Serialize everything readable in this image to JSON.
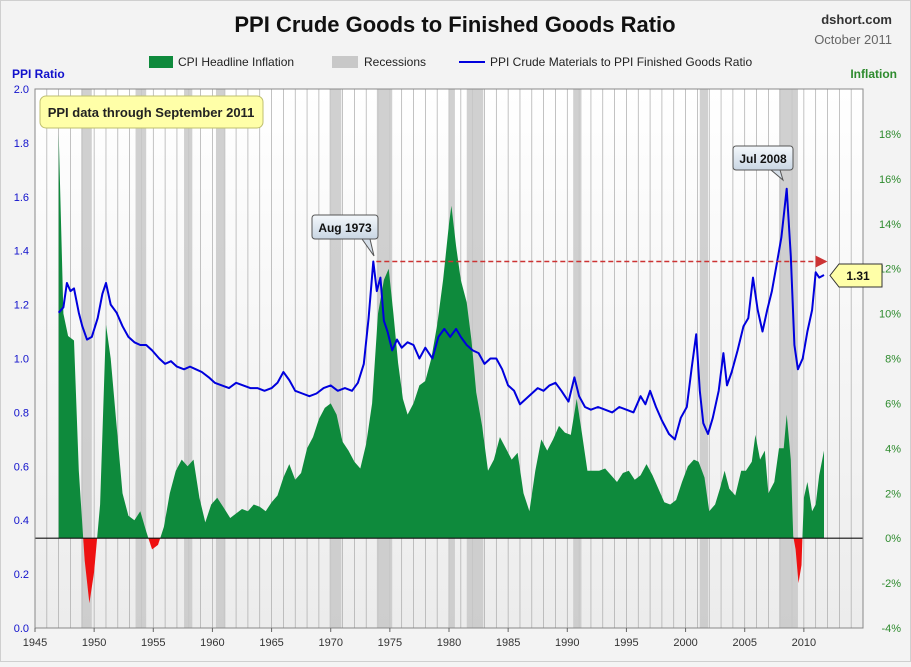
{
  "header": {
    "title": "PPI Crude Goods to Finished Goods Ratio",
    "site": "dshort.com",
    "date": "October 2011"
  },
  "legend": {
    "cpi": "CPI Headline Inflation",
    "recessions": "Recessions",
    "ppi": "PPI Crude Materials to PPI Finished Goods Ratio"
  },
  "axis": {
    "left_title": "PPI Ratio",
    "right_title": "Inflation"
  },
  "colors": {
    "ratio_line": "#0000dd",
    "cpi_positive": "#0e8a3c",
    "cpi_negative": "#ee1111",
    "recession": "#c8c8c8",
    "left_axis_title": "#1111cc",
    "right_axis_title": "#2e8b2e",
    "note_box": "#ffffa8",
    "reference_arrow": "#cc3333"
  },
  "annotations": {
    "note": "PPI data through September 2011",
    "peak_1973": "Aug 1973",
    "peak_2008": "Jul 2008",
    "latest_value": "1.31"
  },
  "chart_data": {
    "type": "line",
    "title": "PPI Crude Goods to Finished Goods Ratio",
    "x_ticks": [
      1945,
      1950,
      1955,
      1960,
      1965,
      1970,
      1975,
      1980,
      1985,
      1990,
      1995,
      2000,
      2005,
      2010
    ],
    "xlim": [
      1945,
      2015
    ],
    "y_left_ticks": [
      "0.0",
      "0.2",
      "0.4",
      "0.6",
      "0.8",
      "1.0",
      "1.2",
      "1.4",
      "1.6",
      "1.8",
      "2.0"
    ],
    "ylim_left": [
      0,
      2
    ],
    "y_right_ticks": [
      "-4%",
      "-2%",
      "0%",
      "2%",
      "4%",
      "6%",
      "8%",
      "10%",
      "12%",
      "14%",
      "16%",
      "18%"
    ],
    "ylim_right": [
      -4,
      20
    ],
    "grid": "vertical lines each year",
    "legend_position": "top",
    "recessions": [
      [
        1948.9,
        1949.8
      ],
      [
        1953.5,
        1954.4
      ],
      [
        1957.6,
        1958.3
      ],
      [
        1960.3,
        1961.1
      ],
      [
        1969.9,
        1970.9
      ],
      [
        1973.9,
        1975.2
      ],
      [
        1980.0,
        1980.5
      ],
      [
        1981.5,
        1982.9
      ],
      [
        1990.5,
        1991.2
      ],
      [
        2001.2,
        2001.9
      ],
      [
        2007.9,
        2009.5
      ]
    ],
    "series": [
      {
        "name": "PPI Crude Materials to PPI Finished Goods Ratio",
        "axis": "left",
        "points": [
          [
            1947.0,
            1.17
          ],
          [
            1947.4,
            1.19
          ],
          [
            1947.7,
            1.28
          ],
          [
            1948.0,
            1.25
          ],
          [
            1948.3,
            1.26
          ],
          [
            1948.7,
            1.17
          ],
          [
            1949.0,
            1.12
          ],
          [
            1949.4,
            1.07
          ],
          [
            1949.8,
            1.08
          ],
          [
            1950.3,
            1.15
          ],
          [
            1950.7,
            1.24
          ],
          [
            1951.0,
            1.28
          ],
          [
            1951.4,
            1.2
          ],
          [
            1951.9,
            1.17
          ],
          [
            1952.4,
            1.12
          ],
          [
            1952.9,
            1.08
          ],
          [
            1953.4,
            1.06
          ],
          [
            1953.9,
            1.05
          ],
          [
            1954.4,
            1.05
          ],
          [
            1954.9,
            1.03
          ],
          [
            1955.5,
            1.0
          ],
          [
            1956.0,
            0.98
          ],
          [
            1956.5,
            0.99
          ],
          [
            1957.0,
            0.97
          ],
          [
            1957.6,
            0.96
          ],
          [
            1958.1,
            0.97
          ],
          [
            1958.6,
            0.96
          ],
          [
            1959.1,
            0.95
          ],
          [
            1959.7,
            0.93
          ],
          [
            1960.2,
            0.91
          ],
          [
            1960.8,
            0.9
          ],
          [
            1961.4,
            0.89
          ],
          [
            1962.0,
            0.91
          ],
          [
            1962.6,
            0.9
          ],
          [
            1963.2,
            0.89
          ],
          [
            1963.8,
            0.89
          ],
          [
            1964.4,
            0.88
          ],
          [
            1965.0,
            0.89
          ],
          [
            1965.5,
            0.91
          ],
          [
            1966.0,
            0.95
          ],
          [
            1966.5,
            0.92
          ],
          [
            1967.0,
            0.88
          ],
          [
            1967.6,
            0.87
          ],
          [
            1968.2,
            0.86
          ],
          [
            1968.8,
            0.87
          ],
          [
            1969.4,
            0.89
          ],
          [
            1970.0,
            0.9
          ],
          [
            1970.6,
            0.88
          ],
          [
            1971.2,
            0.89
          ],
          [
            1971.8,
            0.88
          ],
          [
            1972.3,
            0.91
          ],
          [
            1972.8,
            0.98
          ],
          [
            1973.2,
            1.15
          ],
          [
            1973.6,
            1.36
          ],
          [
            1973.9,
            1.25
          ],
          [
            1974.2,
            1.3
          ],
          [
            1974.5,
            1.14
          ],
          [
            1974.8,
            1.1
          ],
          [
            1975.2,
            1.03
          ],
          [
            1975.6,
            1.07
          ],
          [
            1976.0,
            1.04
          ],
          [
            1976.5,
            1.06
          ],
          [
            1977.0,
            1.05
          ],
          [
            1977.5,
            1.0
          ],
          [
            1978.0,
            1.04
          ],
          [
            1978.6,
            1.0
          ],
          [
            1979.1,
            1.08
          ],
          [
            1979.6,
            1.11
          ],
          [
            1980.1,
            1.08
          ],
          [
            1980.6,
            1.11
          ],
          [
            1981.0,
            1.08
          ],
          [
            1981.5,
            1.05
          ],
          [
            1982.0,
            1.03
          ],
          [
            1982.5,
            1.02
          ],
          [
            1983.0,
            0.98
          ],
          [
            1983.5,
            1.0
          ],
          [
            1984.0,
            1.0
          ],
          [
            1984.5,
            0.96
          ],
          [
            1985.0,
            0.9
          ],
          [
            1985.5,
            0.88
          ],
          [
            1986.0,
            0.83
          ],
          [
            1986.5,
            0.85
          ],
          [
            1987.0,
            0.87
          ],
          [
            1987.5,
            0.89
          ],
          [
            1988.0,
            0.88
          ],
          [
            1988.5,
            0.9
          ],
          [
            1989.0,
            0.91
          ],
          [
            1989.5,
            0.88
          ],
          [
            1990.1,
            0.84
          ],
          [
            1990.6,
            0.93
          ],
          [
            1991.0,
            0.86
          ],
          [
            1991.5,
            0.82
          ],
          [
            1992.0,
            0.81
          ],
          [
            1992.6,
            0.82
          ],
          [
            1993.2,
            0.81
          ],
          [
            1993.8,
            0.8
          ],
          [
            1994.4,
            0.82
          ],
          [
            1995.0,
            0.81
          ],
          [
            1995.6,
            0.8
          ],
          [
            1996.2,
            0.86
          ],
          [
            1996.6,
            0.83
          ],
          [
            1997.0,
            0.88
          ],
          [
            1997.5,
            0.82
          ],
          [
            1998.0,
            0.77
          ],
          [
            1998.6,
            0.72
          ],
          [
            1999.1,
            0.7
          ],
          [
            1999.6,
            0.78
          ],
          [
            2000.1,
            0.82
          ],
          [
            2000.5,
            0.96
          ],
          [
            2000.9,
            1.09
          ],
          [
            2001.2,
            0.88
          ],
          [
            2001.5,
            0.76
          ],
          [
            2001.9,
            0.72
          ],
          [
            2002.3,
            0.78
          ],
          [
            2002.8,
            0.88
          ],
          [
            2003.2,
            1.02
          ],
          [
            2003.5,
            0.9
          ],
          [
            2003.9,
            0.95
          ],
          [
            2004.4,
            1.03
          ],
          [
            2004.9,
            1.12
          ],
          [
            2005.3,
            1.15
          ],
          [
            2005.7,
            1.3
          ],
          [
            2006.1,
            1.18
          ],
          [
            2006.5,
            1.1
          ],
          [
            2006.9,
            1.18
          ],
          [
            2007.3,
            1.25
          ],
          [
            2007.7,
            1.35
          ],
          [
            2008.1,
            1.45
          ],
          [
            2008.55,
            1.63
          ],
          [
            2008.9,
            1.38
          ],
          [
            2009.2,
            1.05
          ],
          [
            2009.5,
            0.96
          ],
          [
            2009.9,
            1.0
          ],
          [
            2010.3,
            1.1
          ],
          [
            2010.7,
            1.18
          ],
          [
            2011.0,
            1.32
          ],
          [
            2011.3,
            1.3
          ],
          [
            2011.7,
            1.31
          ]
        ]
      },
      {
        "name": "CPI Headline Inflation",
        "axis": "right",
        "points": [
          [
            1947.0,
            18.0
          ],
          [
            1947.4,
            10.0
          ],
          [
            1947.8,
            9.0
          ],
          [
            1948.3,
            8.8
          ],
          [
            1948.7,
            3.0
          ],
          [
            1949.2,
            -1.0
          ],
          [
            1949.6,
            -2.9
          ],
          [
            1950.0,
            -1.5
          ],
          [
            1950.5,
            1.5
          ],
          [
            1951.0,
            9.5
          ],
          [
            1951.4,
            8.0
          ],
          [
            1951.9,
            5.0
          ],
          [
            1952.4,
            2.0
          ],
          [
            1952.9,
            1.0
          ],
          [
            1953.4,
            0.8
          ],
          [
            1953.9,
            1.2
          ],
          [
            1954.4,
            0.3
          ],
          [
            1954.9,
            -0.5
          ],
          [
            1955.4,
            -0.3
          ],
          [
            1955.9,
            0.5
          ],
          [
            1956.4,
            2.0
          ],
          [
            1956.9,
            3.0
          ],
          [
            1957.4,
            3.5
          ],
          [
            1957.9,
            3.2
          ],
          [
            1958.4,
            3.5
          ],
          [
            1958.9,
            1.8
          ],
          [
            1959.4,
            0.7
          ],
          [
            1959.9,
            1.5
          ],
          [
            1960.4,
            1.8
          ],
          [
            1960.9,
            1.4
          ],
          [
            1961.5,
            0.9
          ],
          [
            1962.0,
            1.1
          ],
          [
            1962.5,
            1.3
          ],
          [
            1963.0,
            1.2
          ],
          [
            1963.5,
            1.5
          ],
          [
            1964.0,
            1.4
          ],
          [
            1964.5,
            1.2
          ],
          [
            1965.0,
            1.6
          ],
          [
            1965.5,
            1.9
          ],
          [
            1966.0,
            2.7
          ],
          [
            1966.5,
            3.3
          ],
          [
            1967.0,
            2.6
          ],
          [
            1967.5,
            2.9
          ],
          [
            1968.0,
            4.0
          ],
          [
            1968.5,
            4.5
          ],
          [
            1969.0,
            5.3
          ],
          [
            1969.5,
            5.8
          ],
          [
            1970.0,
            6.0
          ],
          [
            1970.5,
            5.5
          ],
          [
            1971.0,
            4.3
          ],
          [
            1971.5,
            3.9
          ],
          [
            1972.0,
            3.4
          ],
          [
            1972.5,
            3.1
          ],
          [
            1973.0,
            4.2
          ],
          [
            1973.5,
            6.0
          ],
          [
            1974.0,
            10.0
          ],
          [
            1974.5,
            11.5
          ],
          [
            1974.9,
            12.0
          ],
          [
            1975.3,
            10.0
          ],
          [
            1975.7,
            7.8
          ],
          [
            1976.1,
            6.2
          ],
          [
            1976.5,
            5.5
          ],
          [
            1977.0,
            6.0
          ],
          [
            1977.5,
            6.8
          ],
          [
            1978.0,
            7.0
          ],
          [
            1978.5,
            8.0
          ],
          [
            1979.0,
            9.5
          ],
          [
            1979.5,
            11.5
          ],
          [
            1980.0,
            14.0
          ],
          [
            1980.2,
            14.8
          ],
          [
            1980.6,
            13.0
          ],
          [
            1981.0,
            11.5
          ],
          [
            1981.5,
            10.5
          ],
          [
            1981.9,
            8.8
          ],
          [
            1982.3,
            6.5
          ],
          [
            1982.8,
            5.0
          ],
          [
            1983.3,
            3.0
          ],
          [
            1983.8,
            3.5
          ],
          [
            1984.3,
            4.5
          ],
          [
            1984.8,
            4.0
          ],
          [
            1985.3,
            3.5
          ],
          [
            1985.8,
            3.8
          ],
          [
            1986.3,
            2.0
          ],
          [
            1986.8,
            1.2
          ],
          [
            1987.3,
            3.0
          ],
          [
            1987.8,
            4.4
          ],
          [
            1988.3,
            3.9
          ],
          [
            1988.8,
            4.4
          ],
          [
            1989.3,
            5.0
          ],
          [
            1989.8,
            4.7
          ],
          [
            1990.3,
            4.6
          ],
          [
            1990.8,
            6.2
          ],
          [
            1991.2,
            4.8
          ],
          [
            1991.7,
            3.0
          ],
          [
            1992.2,
            3.0
          ],
          [
            1992.7,
            3.0
          ],
          [
            1993.2,
            3.1
          ],
          [
            1993.7,
            2.8
          ],
          [
            1994.2,
            2.5
          ],
          [
            1994.7,
            2.9
          ],
          [
            1995.2,
            3.0
          ],
          [
            1995.7,
            2.6
          ],
          [
            1996.2,
            2.8
          ],
          [
            1996.7,
            3.3
          ],
          [
            1997.2,
            2.8
          ],
          [
            1997.7,
            2.2
          ],
          [
            1998.2,
            1.6
          ],
          [
            1998.7,
            1.5
          ],
          [
            1999.2,
            1.7
          ],
          [
            1999.7,
            2.5
          ],
          [
            2000.2,
            3.2
          ],
          [
            2000.7,
            3.5
          ],
          [
            2001.1,
            3.4
          ],
          [
            2001.6,
            2.7
          ],
          [
            2002.0,
            1.2
          ],
          [
            2002.5,
            1.5
          ],
          [
            2002.9,
            2.2
          ],
          [
            2003.3,
            3.0
          ],
          [
            2003.7,
            2.2
          ],
          [
            2004.2,
            1.9
          ],
          [
            2004.7,
            3.0
          ],
          [
            2005.1,
            3.0
          ],
          [
            2005.6,
            3.4
          ],
          [
            2005.9,
            4.6
          ],
          [
            2006.3,
            3.5
          ],
          [
            2006.7,
            3.9
          ],
          [
            2007.0,
            2.0
          ],
          [
            2007.5,
            2.5
          ],
          [
            2007.9,
            4.0
          ],
          [
            2008.3,
            4.0
          ],
          [
            2008.55,
            5.5
          ],
          [
            2008.9,
            3.5
          ],
          [
            2009.1,
            0.1
          ],
          [
            2009.3,
            -0.5
          ],
          [
            2009.55,
            -2.0
          ],
          [
            2009.8,
            -1.2
          ],
          [
            2010.0,
            1.8
          ],
          [
            2010.3,
            2.5
          ],
          [
            2010.7,
            1.2
          ],
          [
            2011.0,
            1.5
          ],
          [
            2011.3,
            2.8
          ],
          [
            2011.7,
            3.9
          ]
        ]
      }
    ]
  }
}
